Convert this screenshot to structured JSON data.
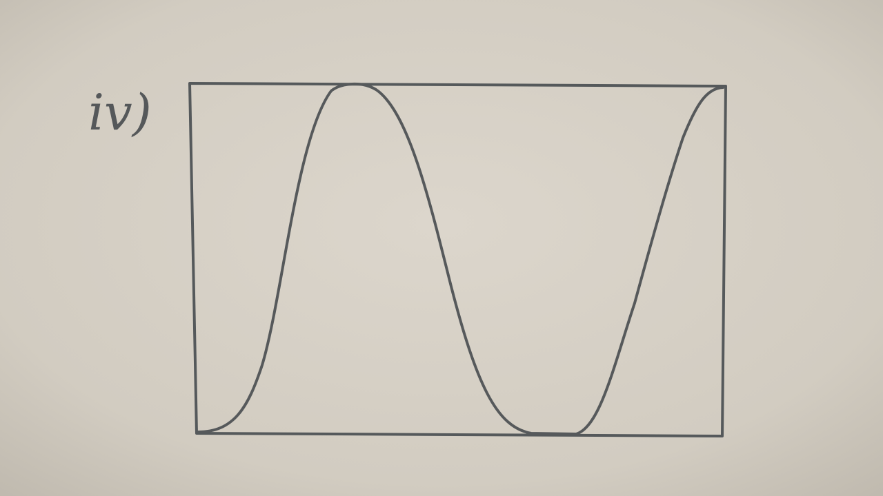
{
  "label": "iv)"
}
